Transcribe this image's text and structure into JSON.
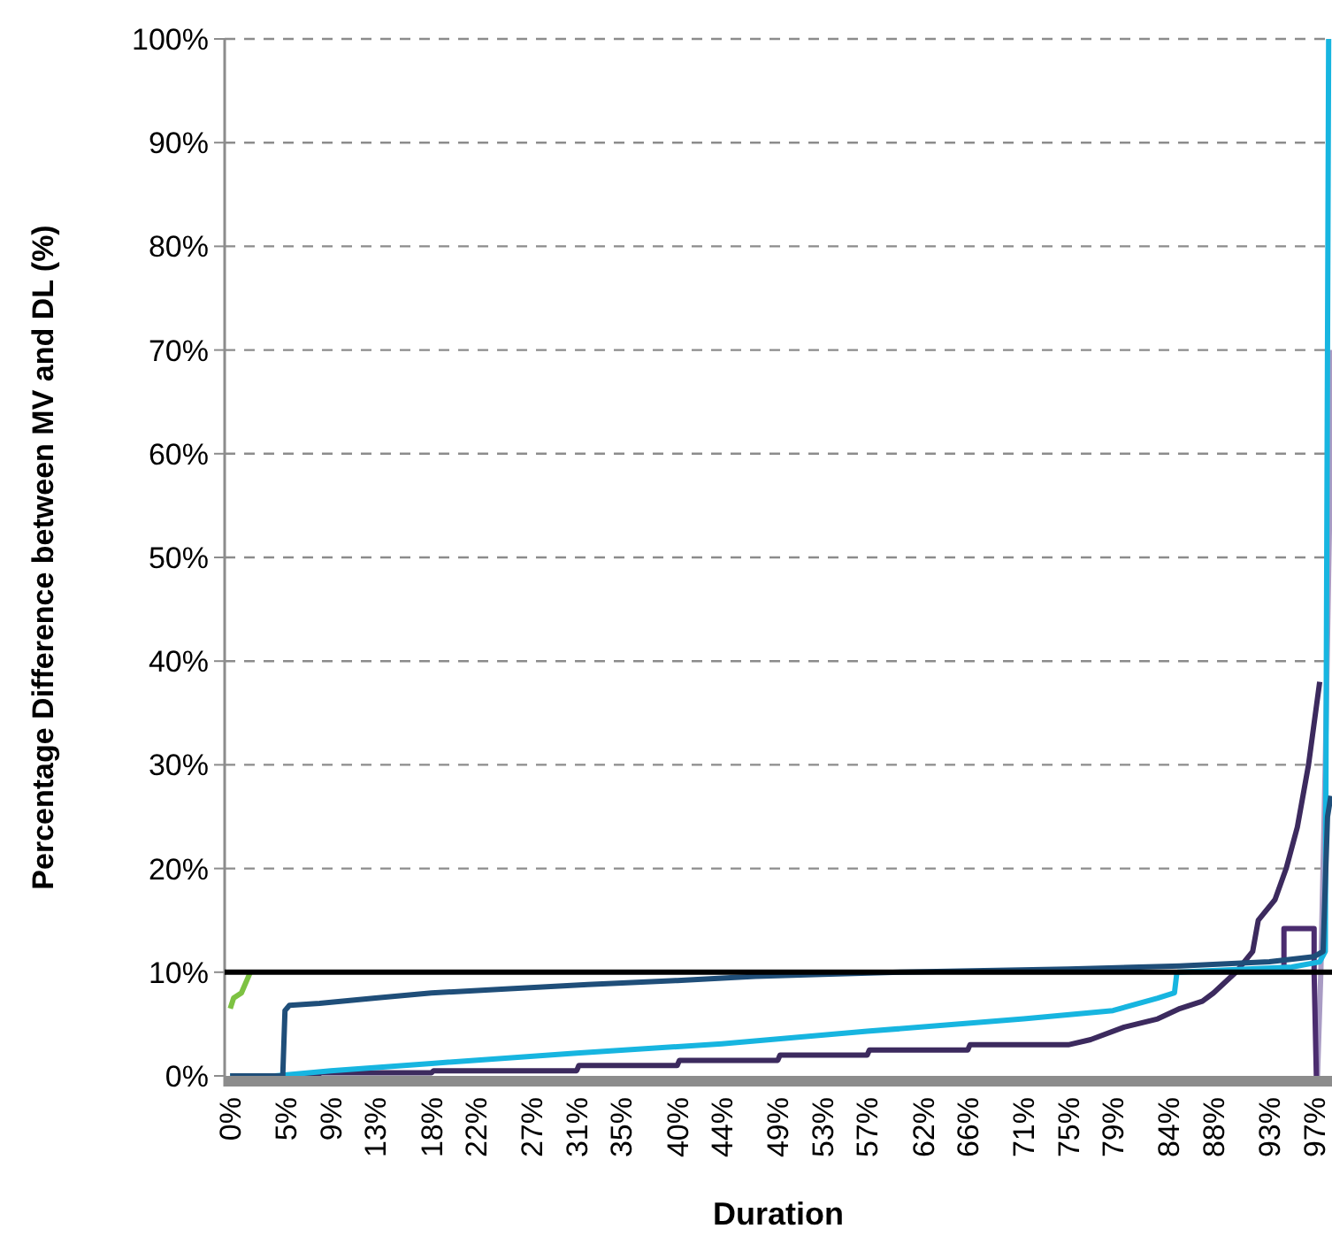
{
  "chart_data": {
    "type": "line",
    "xlabel": "Duration",
    "ylabel": "Percentage Difference between MV and DL (%)",
    "xlim": [
      -0.5,
      98.6
    ],
    "ylim": [
      0,
      100
    ],
    "xticks": [
      {
        "value": 0,
        "label": "0%"
      },
      {
        "value": 5,
        "label": "5%"
      },
      {
        "value": 9,
        "label": "9%"
      },
      {
        "value": 13,
        "label": "13%"
      },
      {
        "value": 18,
        "label": "18%"
      },
      {
        "value": 22,
        "label": "22%"
      },
      {
        "value": 27,
        "label": "27%"
      },
      {
        "value": 31,
        "label": "31%"
      },
      {
        "value": 35,
        "label": "35%"
      },
      {
        "value": 40,
        "label": "40%"
      },
      {
        "value": 44,
        "label": "44%"
      },
      {
        "value": 49,
        "label": "49%"
      },
      {
        "value": 53,
        "label": "53%"
      },
      {
        "value": 57,
        "label": "57%"
      },
      {
        "value": 62,
        "label": "62%"
      },
      {
        "value": 66,
        "label": "66%"
      },
      {
        "value": 71,
        "label": "71%"
      },
      {
        "value": 75,
        "label": "75%"
      },
      {
        "value": 79,
        "label": "79%"
      },
      {
        "value": 84,
        "label": "84%"
      },
      {
        "value": 88,
        "label": "88%"
      },
      {
        "value": 93,
        "label": "93%"
      },
      {
        "value": 97,
        "label": "97%"
      }
    ],
    "yticks": [
      {
        "value": 0,
        "label": "0%"
      },
      {
        "value": 10,
        "label": "10%"
      },
      {
        "value": 20,
        "label": "20%"
      },
      {
        "value": 30,
        "label": "30%"
      },
      {
        "value": 40,
        "label": "40%"
      },
      {
        "value": 50,
        "label": "50%"
      },
      {
        "value": 60,
        "label": "60%"
      },
      {
        "value": 70,
        "label": "70%"
      },
      {
        "value": 80,
        "label": "80%"
      },
      {
        "value": 90,
        "label": "90%"
      },
      {
        "value": 100,
        "label": "100%"
      }
    ],
    "grid": "y",
    "marker": "none",
    "line_style": "solid",
    "ref_lines": [
      {
        "axis": "y",
        "value": 10,
        "color": "#000000"
      }
    ],
    "series": [
      {
        "color": "#7dc242",
        "x": [
          0,
          0.3,
          1.0,
          1.6,
          1.8
        ],
        "values": [
          6.5,
          7.5,
          8,
          9.5,
          10
        ]
      },
      {
        "color": "#a99bc4",
        "x": [
          97.3,
          97.6,
          98,
          98.4,
          98.6
        ],
        "values": [
          0,
          10,
          30,
          55,
          70
        ]
      },
      {
        "color": "#3c2a5e",
        "x": [
          0,
          7.9,
          8,
          18,
          18.2,
          31,
          31.2,
          40,
          40.2,
          49,
          49.2,
          57,
          57.2,
          66,
          66.2,
          75,
          77,
          80,
          83,
          85,
          87,
          88,
          89,
          90,
          91.5,
          92,
          93.5,
          94.5,
          95.5,
          96.5,
          97.5
        ],
        "values": [
          0,
          0,
          0.3,
          0.3,
          0.5,
          0.5,
          1,
          1,
          1.5,
          1.5,
          2,
          2,
          2.5,
          2.5,
          3,
          3,
          3.5,
          4.7,
          5.5,
          6.5,
          7.2,
          8,
          9,
          10,
          12,
          15,
          17,
          20,
          24,
          30,
          38
        ]
      },
      {
        "color": "#4b2c6f",
        "x": [
          94.3,
          94.3,
          97,
          97,
          97.2
        ],
        "values": [
          10,
          14.2,
          14.2,
          10,
          0
        ]
      },
      {
        "color": "#17b5e0",
        "x": [
          0,
          4,
          9,
          18,
          31,
          44,
          57,
          71,
          79,
          83,
          84.5,
          84.7,
          84.8,
          95,
          97.5,
          98,
          98.3
        ],
        "values": [
          0,
          0,
          0.5,
          1.2,
          2.2,
          3.1,
          4.3,
          5.5,
          6.3,
          7.5,
          8,
          9.8,
          10,
          10.5,
          11,
          12,
          100
        ]
      },
      {
        "color": "#1f4e79",
        "x": [
          0,
          4.7,
          4.9,
          5.3,
          8,
          13,
          18,
          25,
          32,
          40,
          47,
          53,
          60,
          75,
          85,
          93,
          97,
          97.8,
          98.2,
          98.5
        ],
        "values": [
          0,
          0,
          6.3,
          6.8,
          7,
          7.5,
          8,
          8.4,
          8.8,
          9.2,
          9.6,
          9.8,
          10,
          10.3,
          10.6,
          11,
          11.5,
          12,
          25,
          27
        ]
      }
    ]
  }
}
